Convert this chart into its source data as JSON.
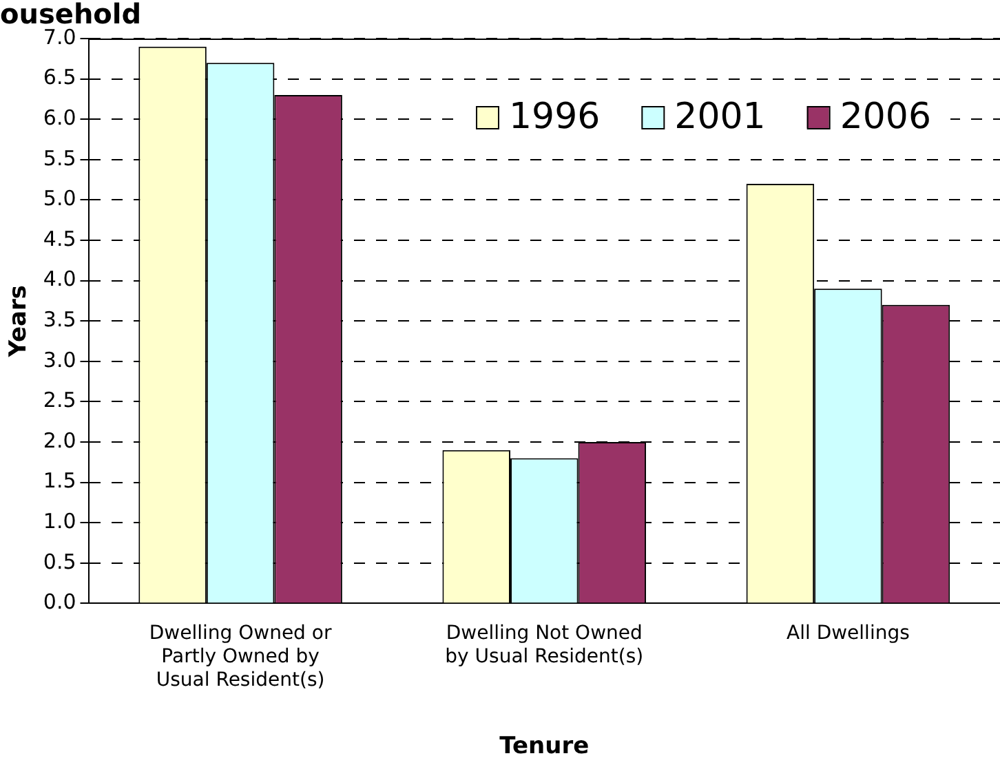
{
  "chart_data": {
    "type": "bar",
    "title": "ousehold",
    "xlabel": "Tenure",
    "ylabel": "Years",
    "categories": [
      "Dwelling Owned or Partly Owned by Usual Resident(s)",
      "Dwelling Not Owned by Usual Resident(s)",
      "All Dwellings"
    ],
    "series": [
      {
        "name": "1996",
        "color": "#ffffcc",
        "values": [
          6.9,
          1.9,
          5.2
        ]
      },
      {
        "name": "2001",
        "color": "#ccffff",
        "values": [
          6.7,
          1.8,
          3.9
        ]
      },
      {
        "name": "2006",
        "color": "#993366",
        "values": [
          6.3,
          2.0,
          3.7
        ]
      }
    ],
    "ylim": [
      0,
      7
    ],
    "yticks": [
      {
        "value": 0,
        "label": "0.0"
      },
      {
        "value": 0.5,
        "label": "0.5"
      },
      {
        "value": 1,
        "label": "1.0"
      },
      {
        "value": 1.5,
        "label": "1.5"
      },
      {
        "value": 2,
        "label": "2.0"
      },
      {
        "value": 2.5,
        "label": "2.5"
      },
      {
        "value": 3,
        "label": "3.0"
      },
      {
        "value": 3.5,
        "label": "3.5"
      },
      {
        "value": 4,
        "label": "4.0"
      },
      {
        "value": 4.5,
        "label": "4.5"
      },
      {
        "value": 5,
        "label": "5.0"
      },
      {
        "value": 5.5,
        "label": "5.5"
      },
      {
        "value": 6,
        "label": "6.0"
      },
      {
        "value": 6.5,
        "label": "6.5"
      },
      {
        "value": 7,
        "label": "7.0"
      }
    ],
    "grid": "y",
    "legend": "top right"
  }
}
